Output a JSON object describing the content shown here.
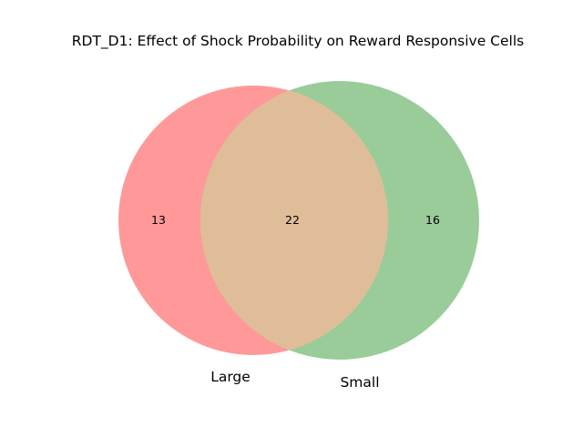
{
  "title": "RDT_D1: Effect of Shock Probability on Reward Responsive Cells",
  "sets": [
    {
      "name": "Large",
      "only_count": "13",
      "color": "#ff9999"
    },
    {
      "name": "Small",
      "only_count": "16",
      "color": "#99cc99"
    }
  ],
  "intersection": {
    "count": "22",
    "color": "#e0bd99"
  }
}
